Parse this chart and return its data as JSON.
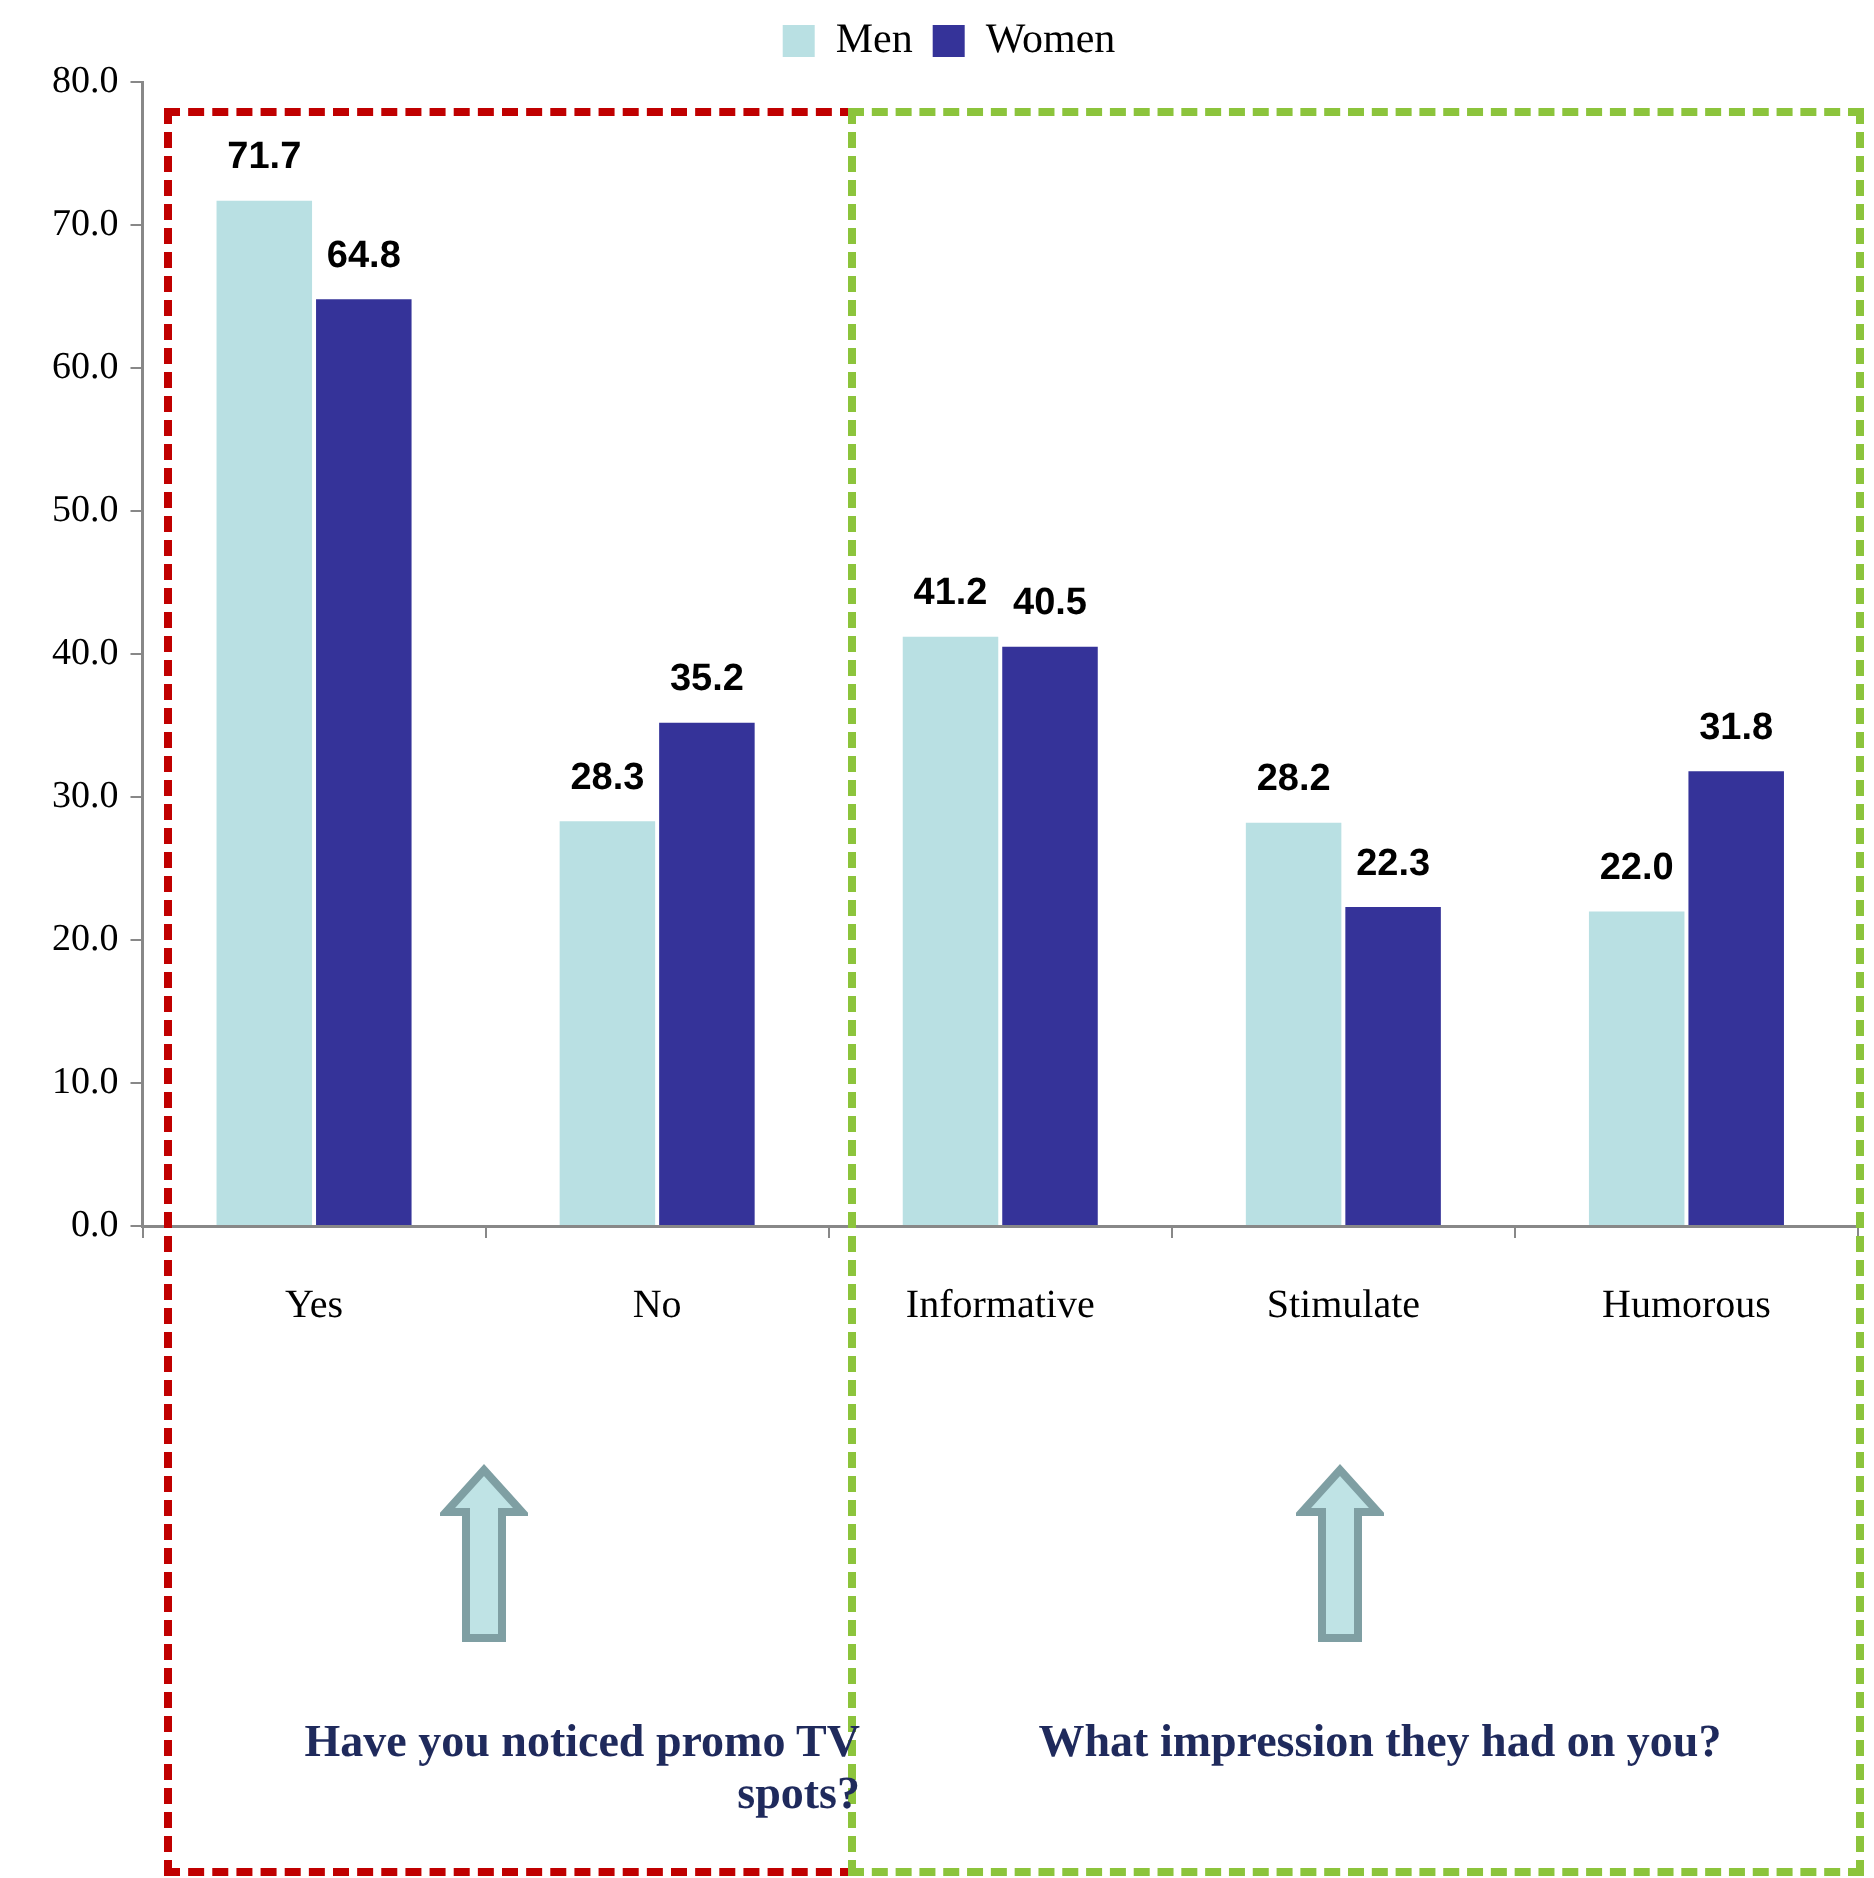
{
  "chart_data": {
    "type": "bar",
    "categories": [
      "Yes",
      "No",
      "Informative",
      "Stimulate",
      "Humorous"
    ],
    "series": [
      {
        "name": "Men",
        "color": "#b9e0e3",
        "values": [
          71.7,
          28.3,
          41.2,
          28.2,
          22.0
        ],
        "value_labels": [
          "71.7",
          "28.3",
          "41.2",
          "28.2",
          "22.0"
        ]
      },
      {
        "name": "Women",
        "color": "#353399",
        "values": [
          64.8,
          35.2,
          40.5,
          22.3,
          31.8
        ],
        "value_labels": [
          "64.8",
          "35.2",
          "40.5",
          "22.3",
          "31.8"
        ]
      }
    ],
    "ylim": [
      0,
      80
    ],
    "yticks": [
      {
        "value": 0,
        "label": "0.0"
      },
      {
        "value": 10,
        "label": "10.0"
      },
      {
        "value": 20,
        "label": "20.0"
      },
      {
        "value": 30,
        "label": "30.0"
      },
      {
        "value": 40,
        "label": "40.0"
      },
      {
        "value": 50,
        "label": "50.0"
      },
      {
        "value": 60,
        "label": "60.0"
      },
      {
        "value": 70,
        "label": "70.0"
      },
      {
        "value": 80,
        "label": "80.0"
      }
    ],
    "grid": false,
    "legend": "top",
    "annotations": [
      "Have you noticed promo TV spots?",
      "What impression they had on you?"
    ]
  }
}
